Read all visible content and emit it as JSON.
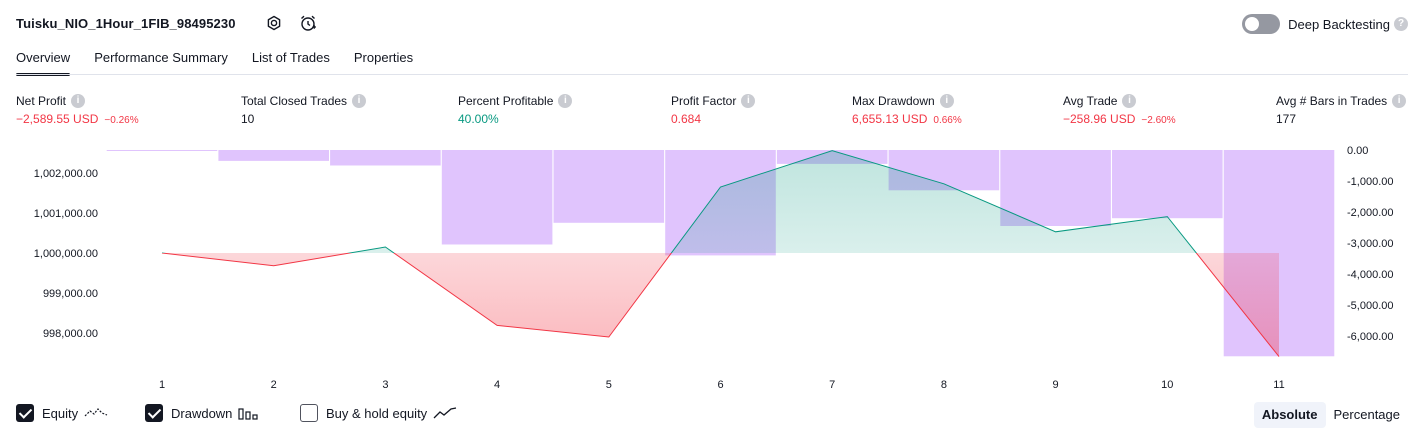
{
  "header": {
    "title": "Tuisku_NIO_1Hour_1FIB_98495230",
    "deep_backtesting_label": "Deep Backtesting",
    "deep_backtesting_on": false
  },
  "tabs": [
    {
      "label": "Overview",
      "active": true
    },
    {
      "label": "Performance Summary",
      "active": false
    },
    {
      "label": "List of Trades",
      "active": false
    },
    {
      "label": "Properties",
      "active": false
    }
  ],
  "metrics": {
    "net_profit": {
      "label": "Net Profit",
      "value": "−2,589.55 USD",
      "sub": "−0.26%"
    },
    "total_closed_trades": {
      "label": "Total Closed Trades",
      "value": "10"
    },
    "percent_profitable": {
      "label": "Percent Profitable",
      "value": "40.00%"
    },
    "profit_factor": {
      "label": "Profit Factor",
      "value": "0.684"
    },
    "max_drawdown": {
      "label": "Max Drawdown",
      "value": "6,655.13 USD",
      "sub": "0.66%"
    },
    "avg_trade": {
      "label": "Avg Trade",
      "value": "−258.96 USD",
      "sub": "−2.60%"
    },
    "avg_bars": {
      "label": "Avg # Bars in Trades",
      "value": "177"
    }
  },
  "colors": {
    "profit": "#089981",
    "loss": "#f23645",
    "drawdown_bar": "#d1a8fc",
    "text": "#131722"
  },
  "footer": {
    "legend": [
      {
        "label": "Equity",
        "checked": true,
        "icon": "equity-line-icon"
      },
      {
        "label": "Drawdown",
        "checked": true,
        "icon": "drawdown-bars-icon"
      },
      {
        "label": "Buy & hold equity",
        "checked": false,
        "icon": "buy-hold-line-icon"
      }
    ],
    "scale_options": [
      "Absolute",
      "Percentage"
    ],
    "scale_selected": "Absolute"
  },
  "chart_data": {
    "type": "line",
    "x": [
      1,
      2,
      3,
      4,
      5,
      6,
      7,
      8,
      9,
      10,
      11
    ],
    "equity_baseline": 1000000,
    "series": [
      {
        "values": [
          1000000,
          999680,
          1000150,
          998190,
          997900,
          1001650,
          1002560,
          1001730,
          1000530,
          1000910,
          997410
        ]
      },
      {
        "values": [
          -10,
          -350,
          -500,
          -3050,
          -2350,
          -3400,
          -450,
          -1300,
          -2450,
          -2200,
          -6655
        ]
      }
    ],
    "left_axis": {
      "ticks": [
        1002000,
        1001000,
        1000000,
        999000,
        998000
      ],
      "tick_labels": [
        "1,002,000.00",
        "1,001,000.00",
        "1,000,000.00",
        "999,000.00",
        "998,000.00"
      ]
    },
    "right_axis": {
      "ticks": [
        0,
        -1000,
        -2000,
        -3000,
        -4000,
        -5000,
        -6000
      ],
      "tick_labels": [
        "0.00",
        "-1,000.00",
        "-2,000.00",
        "-3,000.00",
        "-4,000.00",
        "-5,000.00",
        "-6,000.00"
      ]
    },
    "x_tick_labels": [
      "1",
      "2",
      "3",
      "4",
      "5",
      "6",
      "7",
      "8",
      "9",
      "10",
      "11"
    ],
    "grid": false
  }
}
